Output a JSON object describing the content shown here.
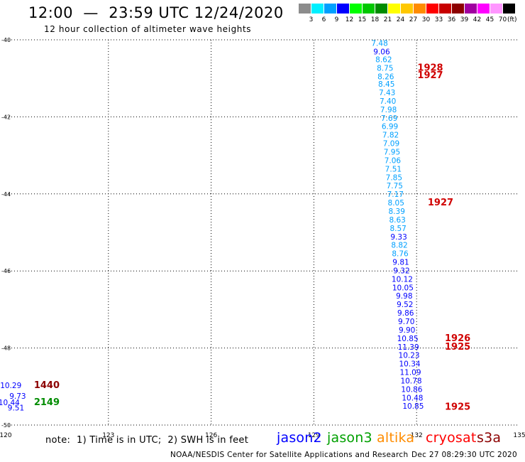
{
  "header": {
    "title": "12:00  —  23:59 UTC 12/24/2020",
    "subtitle": "12 hour collection of altimeter wave heights"
  },
  "colorbar": {
    "unit": "(ft)",
    "bins": [
      {
        "label": "3",
        "color": "#8c8c8c"
      },
      {
        "label": "6",
        "color": "#00f0ff"
      },
      {
        "label": "9",
        "color": "#00a0ff"
      },
      {
        "label": "12",
        "color": "#0000ff"
      },
      {
        "label": "15",
        "color": "#00ff00"
      },
      {
        "label": "18",
        "color": "#00c800"
      },
      {
        "label": "21",
        "color": "#008c00"
      },
      {
        "label": "24",
        "color": "#ffff00"
      },
      {
        "label": "27",
        "color": "#ffc800"
      },
      {
        "label": "30",
        "color": "#ff8c00"
      },
      {
        "label": "33",
        "color": "#ff0000"
      },
      {
        "label": "36",
        "color": "#c80000"
      },
      {
        "label": "39",
        "color": "#8c0000"
      },
      {
        "label": "42",
        "color": "#a000a0"
      },
      {
        "label": "45",
        "color": "#ff00ff"
      },
      {
        "label": "70",
        "color": "#ff96ff"
      },
      {
        "label": "",
        "color": "#000000"
      }
    ]
  },
  "chart_data": {
    "type": "scatter",
    "xlim": [
      120,
      135
    ],
    "ylim": [
      -50,
      -40
    ],
    "grid": true,
    "x_ticks": [
      "120",
      "123",
      "126",
      "129",
      "132",
      "135"
    ],
    "y_ticks": [
      "-40",
      "-42",
      "-44",
      "-46",
      "-48",
      "-50"
    ],
    "wave_points": [
      {
        "lon": 130.92,
        "lat": -40.16,
        "label": "7.48",
        "color": "#00a0ff"
      },
      {
        "lon": 130.98,
        "lat": -40.38,
        "label": "9.06",
        "color": "#0000ff"
      },
      {
        "lon": 131.04,
        "lat": -40.58,
        "label": "8.62",
        "color": "#00a0ff"
      },
      {
        "lon": 131.08,
        "lat": -40.8,
        "label": "8.75",
        "color": "#00a0ff"
      },
      {
        "lon": 131.1,
        "lat": -41.02,
        "label": "8.26",
        "color": "#00a0ff"
      },
      {
        "lon": 131.12,
        "lat": -41.22,
        "label": "8.45",
        "color": "#00a0ff"
      },
      {
        "lon": 131.14,
        "lat": -41.44,
        "label": "7.43",
        "color": "#00a0ff"
      },
      {
        "lon": 131.16,
        "lat": -41.66,
        "label": "7.40",
        "color": "#00a0ff"
      },
      {
        "lon": 131.18,
        "lat": -41.88,
        "label": "7.98",
        "color": "#00a0ff"
      },
      {
        "lon": 131.2,
        "lat": -42.1,
        "label": "7.69",
        "color": "#00a0ff"
      },
      {
        "lon": 131.22,
        "lat": -42.32,
        "label": "6.99",
        "color": "#00a0ff"
      },
      {
        "lon": 131.24,
        "lat": -42.54,
        "label": "7.82",
        "color": "#00a0ff"
      },
      {
        "lon": 131.26,
        "lat": -42.76,
        "label": "7.09",
        "color": "#00a0ff"
      },
      {
        "lon": 131.28,
        "lat": -42.98,
        "label": "7.95",
        "color": "#00a0ff"
      },
      {
        "lon": 131.3,
        "lat": -43.2,
        "label": "7.06",
        "color": "#00a0ff"
      },
      {
        "lon": 131.32,
        "lat": -43.42,
        "label": "7.51",
        "color": "#00a0ff"
      },
      {
        "lon": 131.34,
        "lat": -43.64,
        "label": "7.85",
        "color": "#00a0ff"
      },
      {
        "lon": 131.36,
        "lat": -43.86,
        "label": "7.75",
        "color": "#00a0ff"
      },
      {
        "lon": 131.38,
        "lat": -44.08,
        "label": "7.17",
        "color": "#00a0ff"
      },
      {
        "lon": 131.4,
        "lat": -44.3,
        "label": "8.05",
        "color": "#00a0ff"
      },
      {
        "lon": 131.42,
        "lat": -44.52,
        "label": "8.39",
        "color": "#00a0ff"
      },
      {
        "lon": 131.44,
        "lat": -44.74,
        "label": "8.63",
        "color": "#00a0ff"
      },
      {
        "lon": 131.46,
        "lat": -44.96,
        "label": "8.57",
        "color": "#00a0ff"
      },
      {
        "lon": 131.48,
        "lat": -45.18,
        "label": "9.33",
        "color": "#0000ff"
      },
      {
        "lon": 131.5,
        "lat": -45.4,
        "label": "8.82",
        "color": "#00a0ff"
      },
      {
        "lon": 131.52,
        "lat": -45.62,
        "label": "8.76",
        "color": "#00a0ff"
      },
      {
        "lon": 131.54,
        "lat": -45.84,
        "label": "9.81",
        "color": "#0000ff"
      },
      {
        "lon": 131.56,
        "lat": -46.06,
        "label": "9.32",
        "color": "#0000ff"
      },
      {
        "lon": 131.58,
        "lat": -46.28,
        "label": "10.12",
        "color": "#0000ff"
      },
      {
        "lon": 131.6,
        "lat": -46.5,
        "label": "10.05",
        "color": "#0000ff"
      },
      {
        "lon": 131.64,
        "lat": -46.72,
        "label": "9.98",
        "color": "#0000ff"
      },
      {
        "lon": 131.66,
        "lat": -46.94,
        "label": "9.52",
        "color": "#0000ff"
      },
      {
        "lon": 131.68,
        "lat": -47.16,
        "label": "9.86",
        "color": "#0000ff"
      },
      {
        "lon": 131.7,
        "lat": -47.38,
        "label": "9.70",
        "color": "#0000ff"
      },
      {
        "lon": 131.72,
        "lat": -47.6,
        "label": "9.90",
        "color": "#0000ff"
      },
      {
        "lon": 131.74,
        "lat": -47.82,
        "label": "10.85",
        "color": "#0000ff"
      },
      {
        "lon": 131.76,
        "lat": -48.04,
        "label": "11.39",
        "color": "#0000ff"
      },
      {
        "lon": 131.78,
        "lat": -48.26,
        "label": "10.23",
        "color": "#0000ff"
      },
      {
        "lon": 131.8,
        "lat": -48.48,
        "label": "10.34",
        "color": "#0000ff"
      },
      {
        "lon": 131.82,
        "lat": -48.7,
        "label": "11.09",
        "color": "#0000ff"
      },
      {
        "lon": 131.84,
        "lat": -48.92,
        "label": "10.78",
        "color": "#0000ff"
      },
      {
        "lon": 131.86,
        "lat": -49.14,
        "label": "10.86",
        "color": "#0000ff"
      },
      {
        "lon": 131.88,
        "lat": -49.36,
        "label": "10.48",
        "color": "#0000ff"
      },
      {
        "lon": 131.9,
        "lat": -49.58,
        "label": "10.85",
        "color": "#0000ff"
      },
      {
        "lon": 120.15,
        "lat": -49.04,
        "label": "10.29",
        "color": "#0000ff"
      },
      {
        "lon": 120.35,
        "lat": -49.32,
        "label": "9.73",
        "color": "#0000ff"
      },
      {
        "lon": 120.1,
        "lat": -49.48,
        "label": "10.44",
        "color": "#0000ff"
      },
      {
        "lon": 120.3,
        "lat": -49.62,
        "label": "9.51",
        "color": "#0000ff"
      }
    ],
    "time_labels": [
      {
        "lon": 132.4,
        "lat": -40.8,
        "label": "1928",
        "color": "#d00000"
      },
      {
        "lon": 132.4,
        "lat": -41.0,
        "label": "1927",
        "color": "#d00000"
      },
      {
        "lon": 132.7,
        "lat": -44.3,
        "label": "1927",
        "color": "#d00000"
      },
      {
        "lon": 133.2,
        "lat": -47.82,
        "label": "1926",
        "color": "#d00000"
      },
      {
        "lon": 133.2,
        "lat": -48.04,
        "label": "1925",
        "color": "#d00000"
      },
      {
        "lon": 133.2,
        "lat": -49.6,
        "label": "1925",
        "color": "#d00000"
      },
      {
        "lon": 121.2,
        "lat": -49.04,
        "label": "1440",
        "color": "#8c0000"
      },
      {
        "lon": 121.2,
        "lat": -49.48,
        "label": "2149",
        "color": "#008c00"
      }
    ]
  },
  "legend": {
    "note": "note:  1) Time is in UTC;  2) SWH is in feet",
    "satellites": [
      {
        "name": "jason2",
        "color": "#0000ff"
      },
      {
        "name": "jason3",
        "color": "#00a000"
      },
      {
        "name": "altika",
        "color": "#ff8c00"
      },
      {
        "name": "cryosat",
        "color": "#ff0000"
      },
      {
        "name": "s3a",
        "color": "#8c0000"
      }
    ]
  },
  "footer": {
    "credit": "NOAA/NESDIS Center for Satellite Applications and Research",
    "timestamp": "Dec 27 08:29:30 UTC 2020"
  }
}
